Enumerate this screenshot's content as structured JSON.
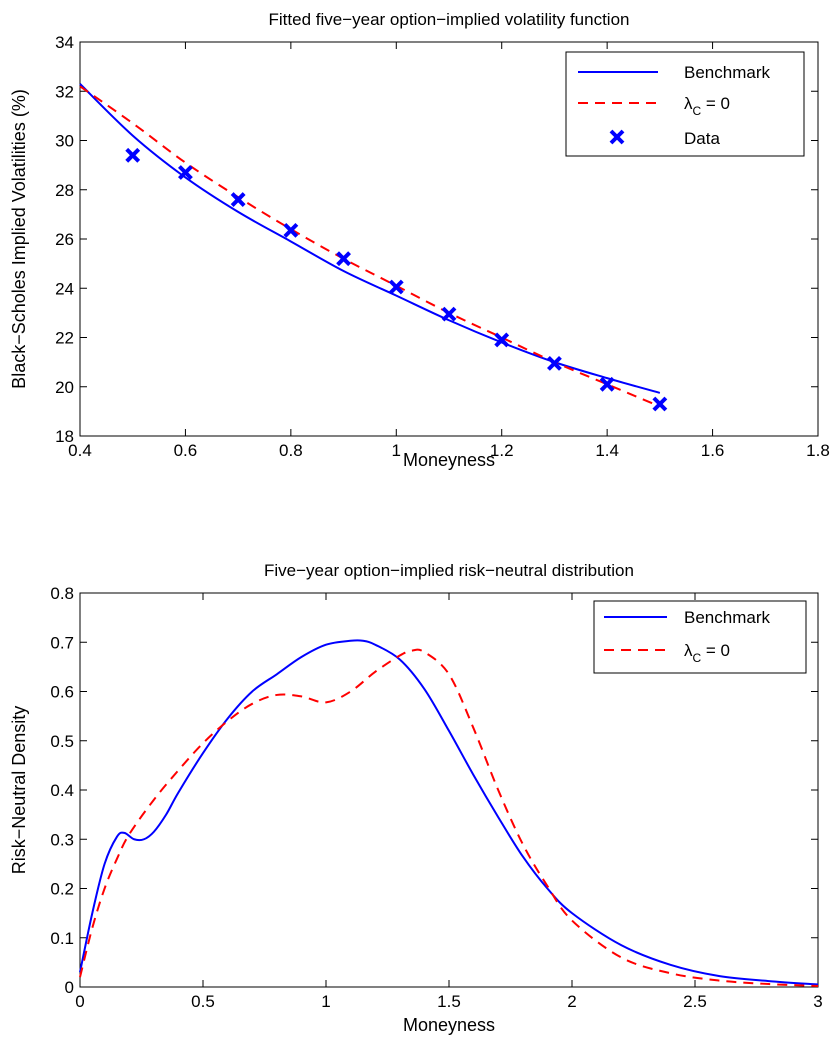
{
  "chart_data": [
    {
      "type": "line",
      "title": "Fitted five−year option−implied volatility function",
      "xlabel": "Moneyness",
      "ylabel": "Black−Scholes Implied Volatilities (%)",
      "xlim": [
        0.4,
        1.8
      ],
      "ylim": [
        18,
        34
      ],
      "xticks": [
        0.4,
        0.6,
        0.8,
        1,
        1.2,
        1.4,
        1.6,
        1.8
      ],
      "yticks": [
        18,
        20,
        22,
        24,
        26,
        28,
        30,
        32,
        34
      ],
      "xtick_labels": [
        "0.4",
        "0.6",
        "0.8",
        "1",
        "1.2",
        "1.4",
        "1.6",
        "1.8"
      ],
      "ytick_labels": [
        "18",
        "20",
        "22",
        "24",
        "26",
        "28",
        "30",
        "32",
        "34"
      ],
      "grid": false,
      "legend_position": "top-right",
      "series": [
        {
          "name": "Benchmark",
          "style": "solid",
          "color": "#0000ff",
          "x": [
            0.4,
            0.5,
            0.6,
            0.7,
            0.8,
            0.9,
            1.0,
            1.1,
            1.2,
            1.3,
            1.4,
            1.5
          ],
          "y": [
            32.3,
            30.2,
            28.5,
            27.1,
            25.9,
            24.7,
            23.7,
            22.7,
            21.8,
            21.0,
            20.35,
            19.75
          ]
        },
        {
          "name": "λC = 0",
          "style": "dashed",
          "color": "#ff0000",
          "x": [
            0.4,
            0.5,
            0.6,
            0.7,
            0.8,
            0.9,
            1.0,
            1.1,
            1.2,
            1.3,
            1.4,
            1.5
          ],
          "y": [
            32.2,
            30.7,
            29.1,
            27.7,
            26.4,
            25.2,
            24.1,
            23.0,
            22.0,
            21.0,
            20.1,
            19.2
          ]
        },
        {
          "name": "Data",
          "style": "marker-x",
          "color": "#0000ff",
          "x": [
            0.5,
            0.6,
            0.7,
            0.8,
            0.9,
            1.0,
            1.1,
            1.2,
            1.3,
            1.4,
            1.5
          ],
          "y": [
            29.4,
            28.7,
            27.6,
            26.35,
            25.2,
            24.05,
            22.95,
            21.9,
            20.95,
            20.1,
            19.3
          ]
        }
      ]
    },
    {
      "type": "line",
      "title": "Five−year option−implied risk−neutral distribution",
      "xlabel": "Moneyness",
      "ylabel": "Risk−Neutral Density",
      "xlim": [
        0,
        3
      ],
      "ylim": [
        0,
        0.8
      ],
      "xticks": [
        0,
        0.5,
        1,
        1.5,
        2,
        2.5,
        3
      ],
      "yticks": [
        0,
        0.1,
        0.2,
        0.3,
        0.4,
        0.5,
        0.6,
        0.7,
        0.8
      ],
      "xtick_labels": [
        "0",
        "0.5",
        "1",
        "1.5",
        "2",
        "2.5",
        "3"
      ],
      "ytick_labels": [
        "0",
        "0.1",
        "0.2",
        "0.3",
        "0.4",
        "0.5",
        "0.6",
        "0.7",
        "0.8"
      ],
      "grid": false,
      "legend_position": "top-right",
      "series": [
        {
          "name": "Benchmark",
          "style": "solid",
          "color": "#0000ff",
          "x": [
            0,
            0.05,
            0.1,
            0.15,
            0.18,
            0.22,
            0.26,
            0.3,
            0.35,
            0.4,
            0.5,
            0.6,
            0.7,
            0.8,
            0.9,
            1.0,
            1.1,
            1.15,
            1.2,
            1.3,
            1.4,
            1.5,
            1.6,
            1.7,
            1.8,
            1.9,
            2.0,
            2.2,
            2.4,
            2.6,
            2.8,
            3.0
          ],
          "y": [
            0.03,
            0.15,
            0.25,
            0.305,
            0.313,
            0.3,
            0.3,
            0.315,
            0.35,
            0.395,
            0.475,
            0.545,
            0.6,
            0.635,
            0.67,
            0.695,
            0.703,
            0.703,
            0.695,
            0.665,
            0.605,
            0.52,
            0.43,
            0.345,
            0.265,
            0.2,
            0.15,
            0.085,
            0.045,
            0.022,
            0.012,
            0.005
          ]
        },
        {
          "name": "λC = 0",
          "style": "dashed",
          "color": "#ff0000",
          "x": [
            0,
            0.05,
            0.1,
            0.15,
            0.2,
            0.3,
            0.4,
            0.5,
            0.6,
            0.7,
            0.8,
            0.9,
            1.0,
            1.1,
            1.2,
            1.3,
            1.35,
            1.4,
            1.5,
            1.6,
            1.7,
            1.8,
            1.9,
            2.0,
            2.2,
            2.4,
            2.6,
            2.8,
            3.0
          ],
          "y": [
            0.02,
            0.12,
            0.2,
            0.26,
            0.31,
            0.38,
            0.44,
            0.495,
            0.54,
            0.575,
            0.593,
            0.59,
            0.578,
            0.6,
            0.64,
            0.673,
            0.683,
            0.68,
            0.635,
            0.525,
            0.4,
            0.29,
            0.205,
            0.135,
            0.06,
            0.028,
            0.013,
            0.006,
            0.002
          ]
        }
      ]
    }
  ]
}
